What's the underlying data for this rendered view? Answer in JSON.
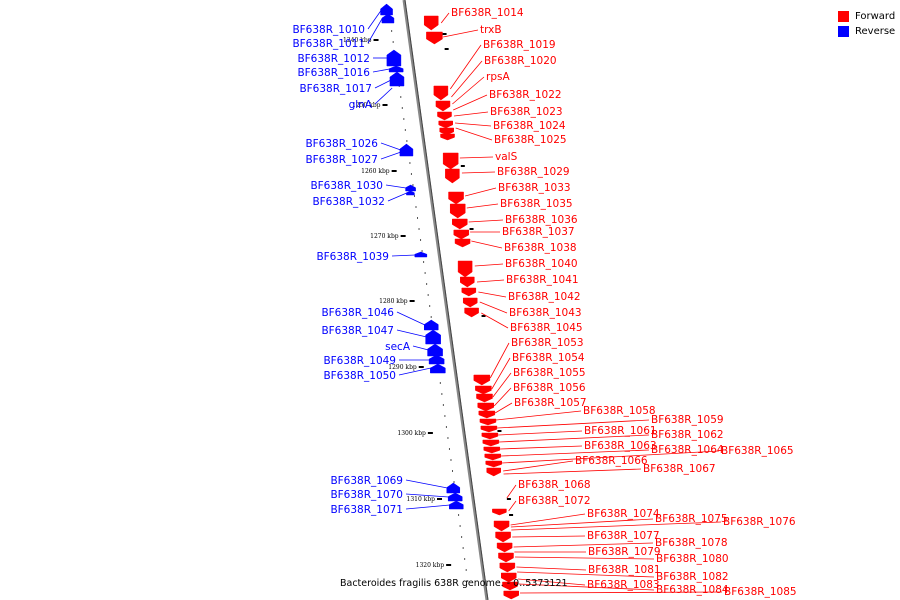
{
  "legend": {
    "forward_label": "Forward",
    "reverse_label": "Reverse",
    "forward_color": "#ff0000",
    "reverse_color": "#0000ff"
  },
  "caption": "Bacteroides fragilis 638R genome. - 0..5373121",
  "axis": {
    "tick_labels": [
      "1240 kbp",
      "1250 kbp",
      "1260 kbp",
      "1270 kbp",
      "1280 kbp",
      "1290 kbp",
      "1300 kbp",
      "1310 kbp",
      "1320 kbp"
    ]
  },
  "genes": {
    "reverse": [
      "BF638R_1010",
      "BF638R_1011",
      "BF638R_1012",
      "BF638R_1016",
      "BF638R_1017",
      "glnA",
      "BF638R_1026",
      "BF638R_1027",
      "BF638R_1030",
      "BF638R_1032",
      "BF638R_1039",
      "BF638R_1046",
      "BF638R_1047",
      "secA",
      "BF638R_1049",
      "BF638R_1050",
      "BF638R_1069",
      "BF638R_1070",
      "BF638R_1071"
    ],
    "forward": [
      "BF638R_1014",
      "trxB",
      "BF638R_1019",
      "BF638R_1020",
      "rpsA",
      "BF638R_1022",
      "BF638R_1023",
      "BF638R_1024",
      "BF638R_1025",
      "valS",
      "BF638R_1029",
      "BF638R_1033",
      "BF638R_1035",
      "BF638R_1036",
      "BF638R_1037",
      "BF638R_1038",
      "BF638R_1040",
      "BF638R_1041",
      "BF638R_1042",
      "BF638R_1043",
      "BF638R_1045",
      "BF638R_1053",
      "BF638R_1054",
      "BF638R_1055",
      "BF638R_1056",
      "BF638R_1057",
      "BF638R_1058",
      "BF638R_1059",
      "BF638R_1061",
      "BF638R_1062",
      "BF638R_1063",
      "BF638R_1064",
      "BF638R_1065",
      "BF638R_1066",
      "BF638R_1067",
      "BF638R_1068",
      "BF638R_1072",
      "BF638R_1074",
      "BF638R_1075",
      "BF638R_1076",
      "BF638R_1077",
      "BF638R_1078",
      "BF638R_1079",
      "BF638R_1080",
      "BF638R_1081",
      "BF638R_1082",
      "BF638R_1083",
      "BF638R_1084",
      "BF638R_1085"
    ]
  }
}
